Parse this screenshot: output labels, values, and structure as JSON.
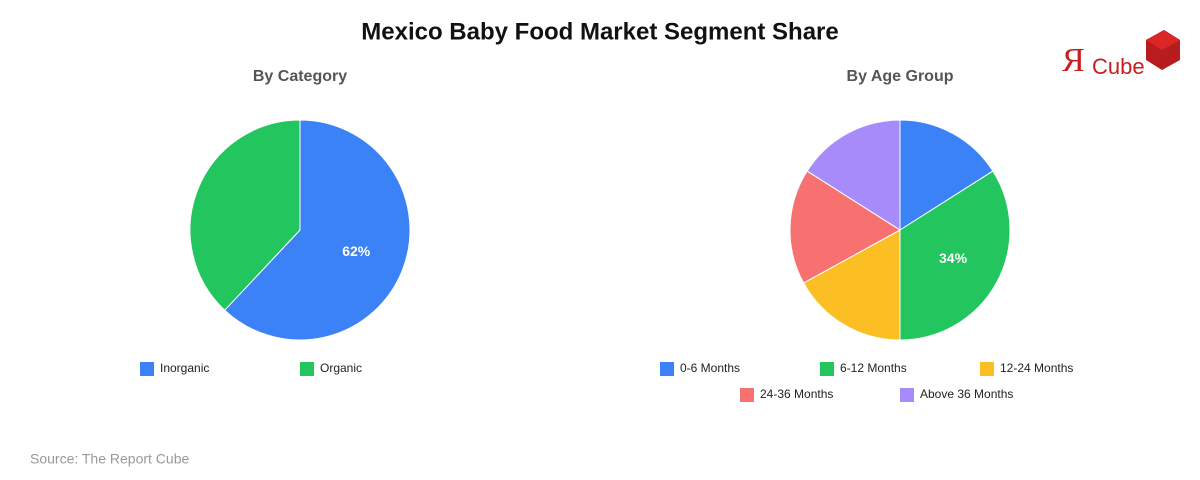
{
  "title": "Mexico Baby Food Market Segment Share",
  "logo": {
    "mark": "Я",
    "text": "Cube"
  },
  "source": "Source: The Report Cube",
  "chart_data": [
    {
      "type": "pie",
      "title": "By Category",
      "categories": [
        "Inorganic",
        "Organic"
      ],
      "values": [
        62,
        38
      ],
      "value_labels": [
        "62%",
        null
      ],
      "colors": [
        "#3b82f6",
        "#22c55e"
      ]
    },
    {
      "type": "pie",
      "title": "By Age Group",
      "categories": [
        "0-6 Months",
        "6-12 Months",
        "12-24 Months",
        "24-36 Months",
        "Above 36 Months"
      ],
      "values": [
        16,
        34,
        17,
        17,
        16
      ],
      "value_labels": [
        null,
        "34%",
        null,
        null,
        null
      ],
      "colors": [
        "#3b82f6",
        "#22c55e",
        "#fbbf24",
        "#f87171",
        "#a78bfa"
      ]
    }
  ]
}
